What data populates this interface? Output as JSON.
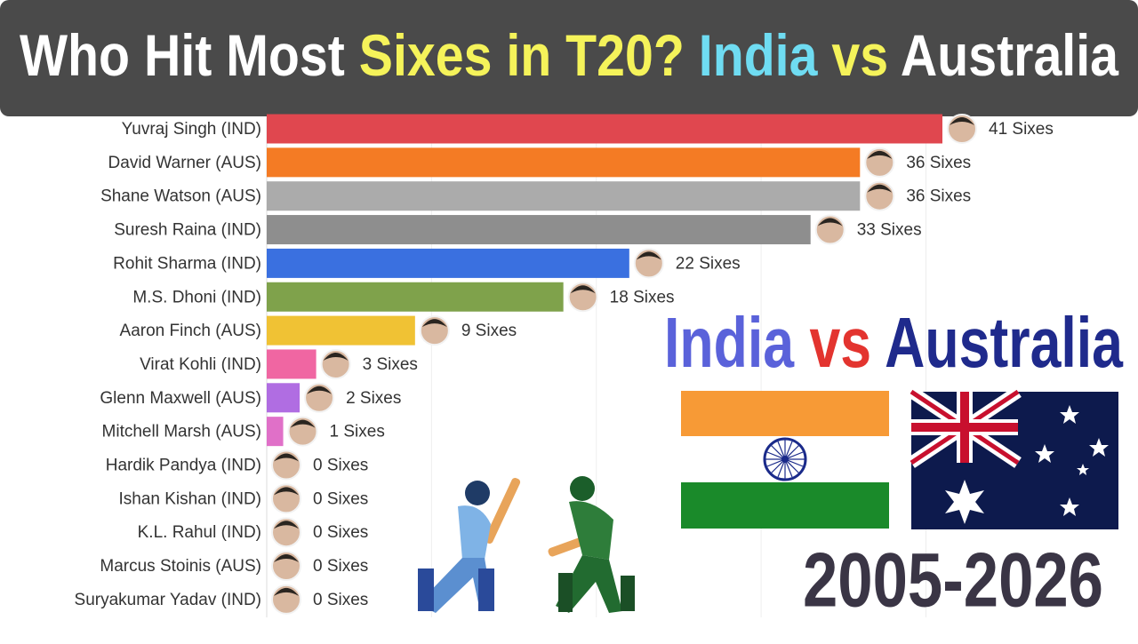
{
  "chart_data": {
    "type": "bar",
    "orientation": "horizontal",
    "title": [
      {
        "text": "Who Hit Most ",
        "color": "#ffffff"
      },
      {
        "text": "Sixes in T20?",
        "color": "#f5f35a"
      },
      {
        "text": " India ",
        "color": "#6fdcf2"
      },
      {
        "text": "vs",
        "color": "#f5f35a"
      },
      {
        "text": " Australia",
        "color": "#ffffff"
      }
    ],
    "categories": [
      "Yuvraj Singh (IND)",
      "David Warner (AUS)",
      "Shane Watson (AUS)",
      "Suresh Raina (IND)",
      "Rohit Sharma (IND)",
      "M.S. Dhoni (IND)",
      "Aaron Finch (AUS)",
      "Virat Kohli (IND)",
      "Glenn Maxwell (AUS)",
      "Mitchell Marsh (AUS)",
      "Hardik Pandya (IND)",
      "Ishan Kishan (IND)",
      "K.L. Rahul (IND)",
      "Marcus Stoinis (AUS)",
      "Suryakumar Yadav (IND)"
    ],
    "values": [
      41,
      36,
      36,
      33,
      22,
      18,
      9,
      3,
      2,
      1,
      0,
      0,
      0,
      0,
      0
    ],
    "value_labels": [
      "41 Sixes",
      "36 Sixes",
      "36 Sixes",
      "33 Sixes",
      "22 Sixes",
      "18 Sixes",
      "9 Sixes",
      "3 Sixes",
      "2 Sixes",
      "1 Sixes",
      "0 Sixes",
      "0 Sixes",
      "0 Sixes",
      "0 Sixes",
      "0 Sixes"
    ],
    "colors": [
      "#e0474f",
      "#f47b24",
      "#ababab",
      "#8e8e8e",
      "#3a70e0",
      "#7fa24b",
      "#f0c234",
      "#f066a2",
      "#b06de2",
      "#e070c8",
      "#3a70e0",
      "#7fa24b",
      "#f0c234",
      "#8e8e8e",
      "#e0474f"
    ],
    "xlim": [
      0,
      41
    ],
    "xticks": [
      10,
      20,
      30,
      40
    ],
    "grid": true,
    "subtitle": [
      {
        "text": "India",
        "color": "#5a62da"
      },
      {
        "text": " vs ",
        "color": "#e3342f"
      },
      {
        "text": "Australia",
        "color": "#1f2a8c"
      }
    ],
    "period": "2005-2026"
  }
}
